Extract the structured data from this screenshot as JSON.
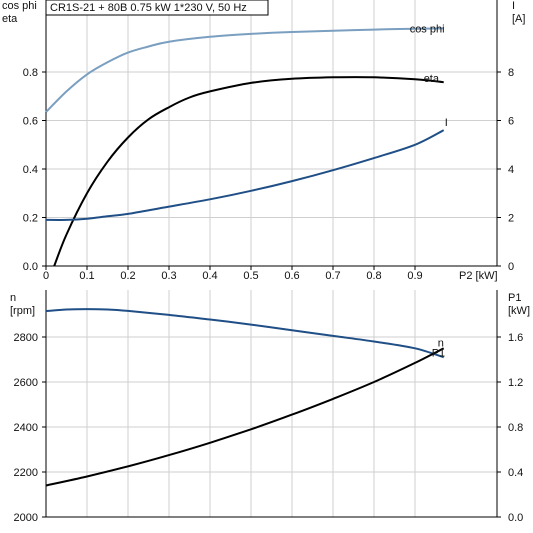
{
  "title": "CR1S-21 + 80B   0.75 kW   1*230 V, 50 Hz",
  "colors": {
    "cos_phi": "#7a9fc0",
    "eta": "#000000",
    "I": "#1f4f86",
    "n": "#1f4f86",
    "P1": "#000000",
    "grid": "#cfcfcf"
  },
  "chart_data": [
    {
      "type": "line",
      "panel": "top",
      "grid": true,
      "xlabel": "P2 [kW]",
      "xlim": [
        0,
        1.1
      ],
      "x_ticks": [
        "0",
        "0.1",
        "0.2",
        "0.3",
        "0.4",
        "0.5",
        "0.6",
        "0.7",
        "0.8",
        "0.9"
      ],
      "left_axis": {
        "label_lines": [
          "cos phi",
          "eta"
        ],
        "ylim": [
          0,
          1.0
        ],
        "ticks": [
          "0.0",
          "0.2",
          "0.4",
          "0.6",
          "0.8"
        ]
      },
      "right_axis": {
        "label_lines": [
          "I",
          "[A]"
        ],
        "ylim": [
          0,
          10
        ],
        "ticks": [
          "0",
          "2",
          "4",
          "6",
          "8"
        ]
      },
      "series": [
        {
          "name": "cos phi",
          "axis": "left",
          "x": [
            0,
            0.05,
            0.1,
            0.15,
            0.2,
            0.25,
            0.3,
            0.4,
            0.5,
            0.6,
            0.7,
            0.8,
            0.9,
            0.97
          ],
          "y": [
            0.635,
            0.72,
            0.79,
            0.84,
            0.88,
            0.905,
            0.925,
            0.945,
            0.957,
            0.965,
            0.97,
            0.975,
            0.978,
            0.98
          ]
        },
        {
          "name": "eta",
          "axis": "left",
          "x": [
            0.02,
            0.05,
            0.1,
            0.15,
            0.2,
            0.25,
            0.3,
            0.35,
            0.4,
            0.5,
            0.6,
            0.7,
            0.8,
            0.9,
            0.97
          ],
          "y": [
            0.0,
            0.13,
            0.3,
            0.43,
            0.53,
            0.605,
            0.655,
            0.695,
            0.72,
            0.755,
            0.772,
            0.778,
            0.778,
            0.77,
            0.758
          ]
        },
        {
          "name": "I",
          "axis": "right",
          "x": [
            0,
            0.05,
            0.1,
            0.15,
            0.2,
            0.3,
            0.4,
            0.5,
            0.6,
            0.7,
            0.8,
            0.9,
            0.97
          ],
          "y": [
            1.9,
            1.9,
            1.95,
            2.05,
            2.15,
            2.45,
            2.75,
            3.1,
            3.5,
            3.95,
            4.45,
            5.0,
            5.6
          ]
        }
      ]
    },
    {
      "type": "line",
      "panel": "bottom",
      "grid": true,
      "xlim": [
        0,
        1.1
      ],
      "left_axis": {
        "label_lines": [
          "n",
          "[rpm]"
        ],
        "ylim": [
          2000,
          2950
        ],
        "ticks": [
          "2000",
          "2200",
          "2400",
          "2600",
          "2800"
        ]
      },
      "right_axis": {
        "label_lines": [
          "P1",
          "[kW]"
        ],
        "ylim": [
          0,
          1.9
        ],
        "ticks": [
          "0.0",
          "0.4",
          "0.8",
          "1.2",
          "1.6"
        ]
      },
      "series": [
        {
          "name": "n",
          "axis": "left",
          "x": [
            0,
            0.05,
            0.1,
            0.15,
            0.2,
            0.3,
            0.4,
            0.5,
            0.6,
            0.7,
            0.8,
            0.9,
            0.97
          ],
          "y": [
            2915,
            2922,
            2924,
            2922,
            2916,
            2898,
            2878,
            2855,
            2830,
            2805,
            2780,
            2750,
            2710
          ]
        },
        {
          "name": "P1",
          "axis": "right",
          "x": [
            0,
            0.1,
            0.2,
            0.3,
            0.4,
            0.5,
            0.6,
            0.7,
            0.8,
            0.9,
            0.97
          ],
          "y": [
            0.28,
            0.36,
            0.45,
            0.55,
            0.66,
            0.78,
            0.91,
            1.05,
            1.2,
            1.37,
            1.5
          ]
        }
      ]
    }
  ]
}
